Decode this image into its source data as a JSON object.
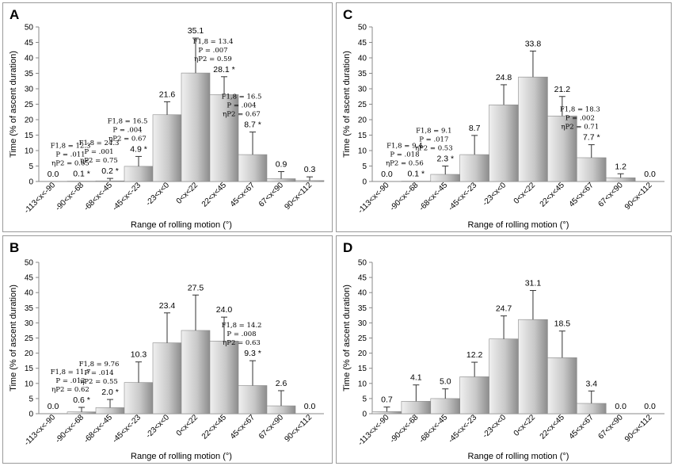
{
  "chart_data": [
    {
      "panel_label": "A",
      "type": "bar",
      "xlabel": "Range of rolling motion (°)",
      "ylabel": "Time (% of ascent duration)",
      "ylim": [
        0,
        50
      ],
      "yticks": [
        "0",
        "5",
        "10",
        "15",
        "20",
        "25",
        "30",
        "35",
        "40",
        "45",
        "50"
      ],
      "categories": [
        "-113<x<-90",
        "-90<x<-68",
        "-68<x<-45",
        "-45<x<-23",
        "-23<x<0",
        "0<x<22",
        "22<x<45",
        "45<x<67",
        "67<x<90",
        "90<x<112"
      ],
      "values": [
        0.0,
        0.1,
        0.2,
        4.9,
        21.6,
        35.1,
        28.1,
        8.7,
        0.9,
        0.3
      ],
      "errors": [
        0,
        0,
        0.8,
        3.2,
        4.2,
        11.3,
        5.8,
        7.3,
        2.3,
        1.2
      ],
      "value_labels": [
        "0.0",
        "0.1 *",
        "0.2 *",
        "4.9 *",
        "21.6",
        "35.1",
        "28.1 *",
        "8.7 *",
        "0.9",
        "0.3"
      ],
      "stats": [
        {
          "bar": 1,
          "lines": [
            "F1,8 = 12.3",
            "P = .011",
            "ηP2 = 0.65"
          ]
        },
        {
          "bar": 2,
          "lines": [
            "F1,8 = 24.3",
            "P = .001",
            "ηP2 = 0.75"
          ]
        },
        {
          "bar": 3,
          "lines": [
            "F1,8 = 16.5",
            "P = .004",
            "ηP2 = 0.67"
          ]
        },
        {
          "bar": 6,
          "lines": [
            "F1,8 = 13.4",
            "P = .007",
            "ηP2 = 0.59"
          ]
        },
        {
          "bar": 7,
          "lines": [
            "F1,8 = 16.5",
            "P = .004",
            "ηP2 = 0.67"
          ]
        }
      ]
    },
    {
      "panel_label": "C",
      "type": "bar",
      "xlabel": "Range of rolling motion (°)",
      "ylabel": "Time (% of ascent duration)",
      "ylim": [
        0,
        50
      ],
      "yticks": [
        "0",
        "5",
        "10",
        "15",
        "20",
        "25",
        "30",
        "35",
        "40",
        "45",
        "50"
      ],
      "categories": [
        "-113<x<-90",
        "-90<x<-68",
        "-68<x<-45",
        "-45<x<-23",
        "-23<x<0",
        "0<x<22",
        "22<x<45",
        "45<x<67",
        "67<x<90",
        "90<x<112"
      ],
      "values": [
        0.0,
        0.1,
        2.3,
        8.7,
        24.8,
        33.8,
        21.2,
        7.7,
        1.2,
        0.0
      ],
      "errors": [
        0,
        0,
        2.7,
        6.2,
        6.5,
        8.4,
        6.3,
        4.2,
        1.3,
        0
      ],
      "value_labels": [
        "0.0",
        "0.1 *",
        "2.3 *",
        "8.7",
        "24.8",
        "33.8",
        "21.2",
        "7.7 *",
        "1.2",
        "0.0"
      ],
      "stats": [
        {
          "bar": 1,
          "lines": [
            "F1,8 = 9.4",
            "P = .018",
            "ηP2 = 0.56"
          ]
        },
        {
          "bar": 2,
          "lines": [
            "F1,8 = 9.1",
            "P = .017",
            "ηP2 = 0.53"
          ]
        },
        {
          "bar": 7,
          "lines": [
            "F1,8 = 18.3",
            "P = .002",
            "ηP2 = 0.71"
          ]
        }
      ]
    },
    {
      "panel_label": "B",
      "type": "bar",
      "xlabel": "Range of rolling motion (°)",
      "ylabel": "Time (% of ascent duration)",
      "ylim": [
        0,
        50
      ],
      "yticks": [
        "0",
        "5",
        "10",
        "15",
        "20",
        "25",
        "30",
        "35",
        "40",
        "45",
        "50"
      ],
      "categories": [
        "-113<x<-90",
        "-90<x<-68",
        "-68<x<-45",
        "-45<x<-23",
        "-23<x<0",
        "0<x<22",
        "22<x<45",
        "45<x<67",
        "67<x<90",
        "90<x<112"
      ],
      "values": [
        0.0,
        0.6,
        2.0,
        10.3,
        23.4,
        27.5,
        24.0,
        9.3,
        2.6,
        0.0
      ],
      "errors": [
        0,
        1.5,
        2.7,
        6.8,
        9.9,
        11.7,
        7.9,
        8.2,
        5.0,
        0
      ],
      "value_labels": [
        "0.0",
        "0.6 *",
        "2.0 *",
        "10.3",
        "23.4",
        "27.5",
        "24.0",
        "9.3 *",
        "2.6",
        "0.0"
      ],
      "stats": [
        {
          "bar": 1,
          "lines": [
            "F1,8 = 11.7",
            "P = .012",
            "ηP2 = 0.62"
          ]
        },
        {
          "bar": 2,
          "lines": [
            "F1,8 = 9.76",
            "P = .014",
            "ηP2 = 0.55"
          ]
        },
        {
          "bar": 7,
          "lines": [
            "F1,8 = 14.2",
            "P = .008",
            "ηP2 = 0.63"
          ]
        }
      ]
    },
    {
      "panel_label": "D",
      "type": "bar",
      "xlabel": "Range of rolling motion (°)",
      "ylabel": "Time (% of ascent duration)",
      "ylim": [
        0,
        50
      ],
      "yticks": [
        "0",
        "5",
        "10",
        "15",
        "20",
        "25",
        "30",
        "35",
        "40",
        "45",
        "50"
      ],
      "categories": [
        "-113<x<-90",
        "-90<x<-68",
        "-68<x<-45",
        "-45<x<-23",
        "-23<x<0",
        "0<x<22",
        "22<x<45",
        "45<x<67",
        "67<x<90",
        "90<x<112"
      ],
      "values": [
        0.7,
        4.1,
        5.0,
        12.2,
        24.7,
        31.1,
        18.5,
        3.4,
        0.0,
        0.0
      ],
      "errors": [
        1.5,
        5.4,
        3.2,
        4.8,
        7.6,
        9.6,
        8.8,
        4.1,
        0,
        0
      ],
      "value_labels": [
        "0.7",
        "4.1",
        "5.0",
        "12.2",
        "24.7",
        "31.1",
        "18.5",
        "3.4",
        "0.0",
        "0.0"
      ],
      "stats": []
    }
  ]
}
